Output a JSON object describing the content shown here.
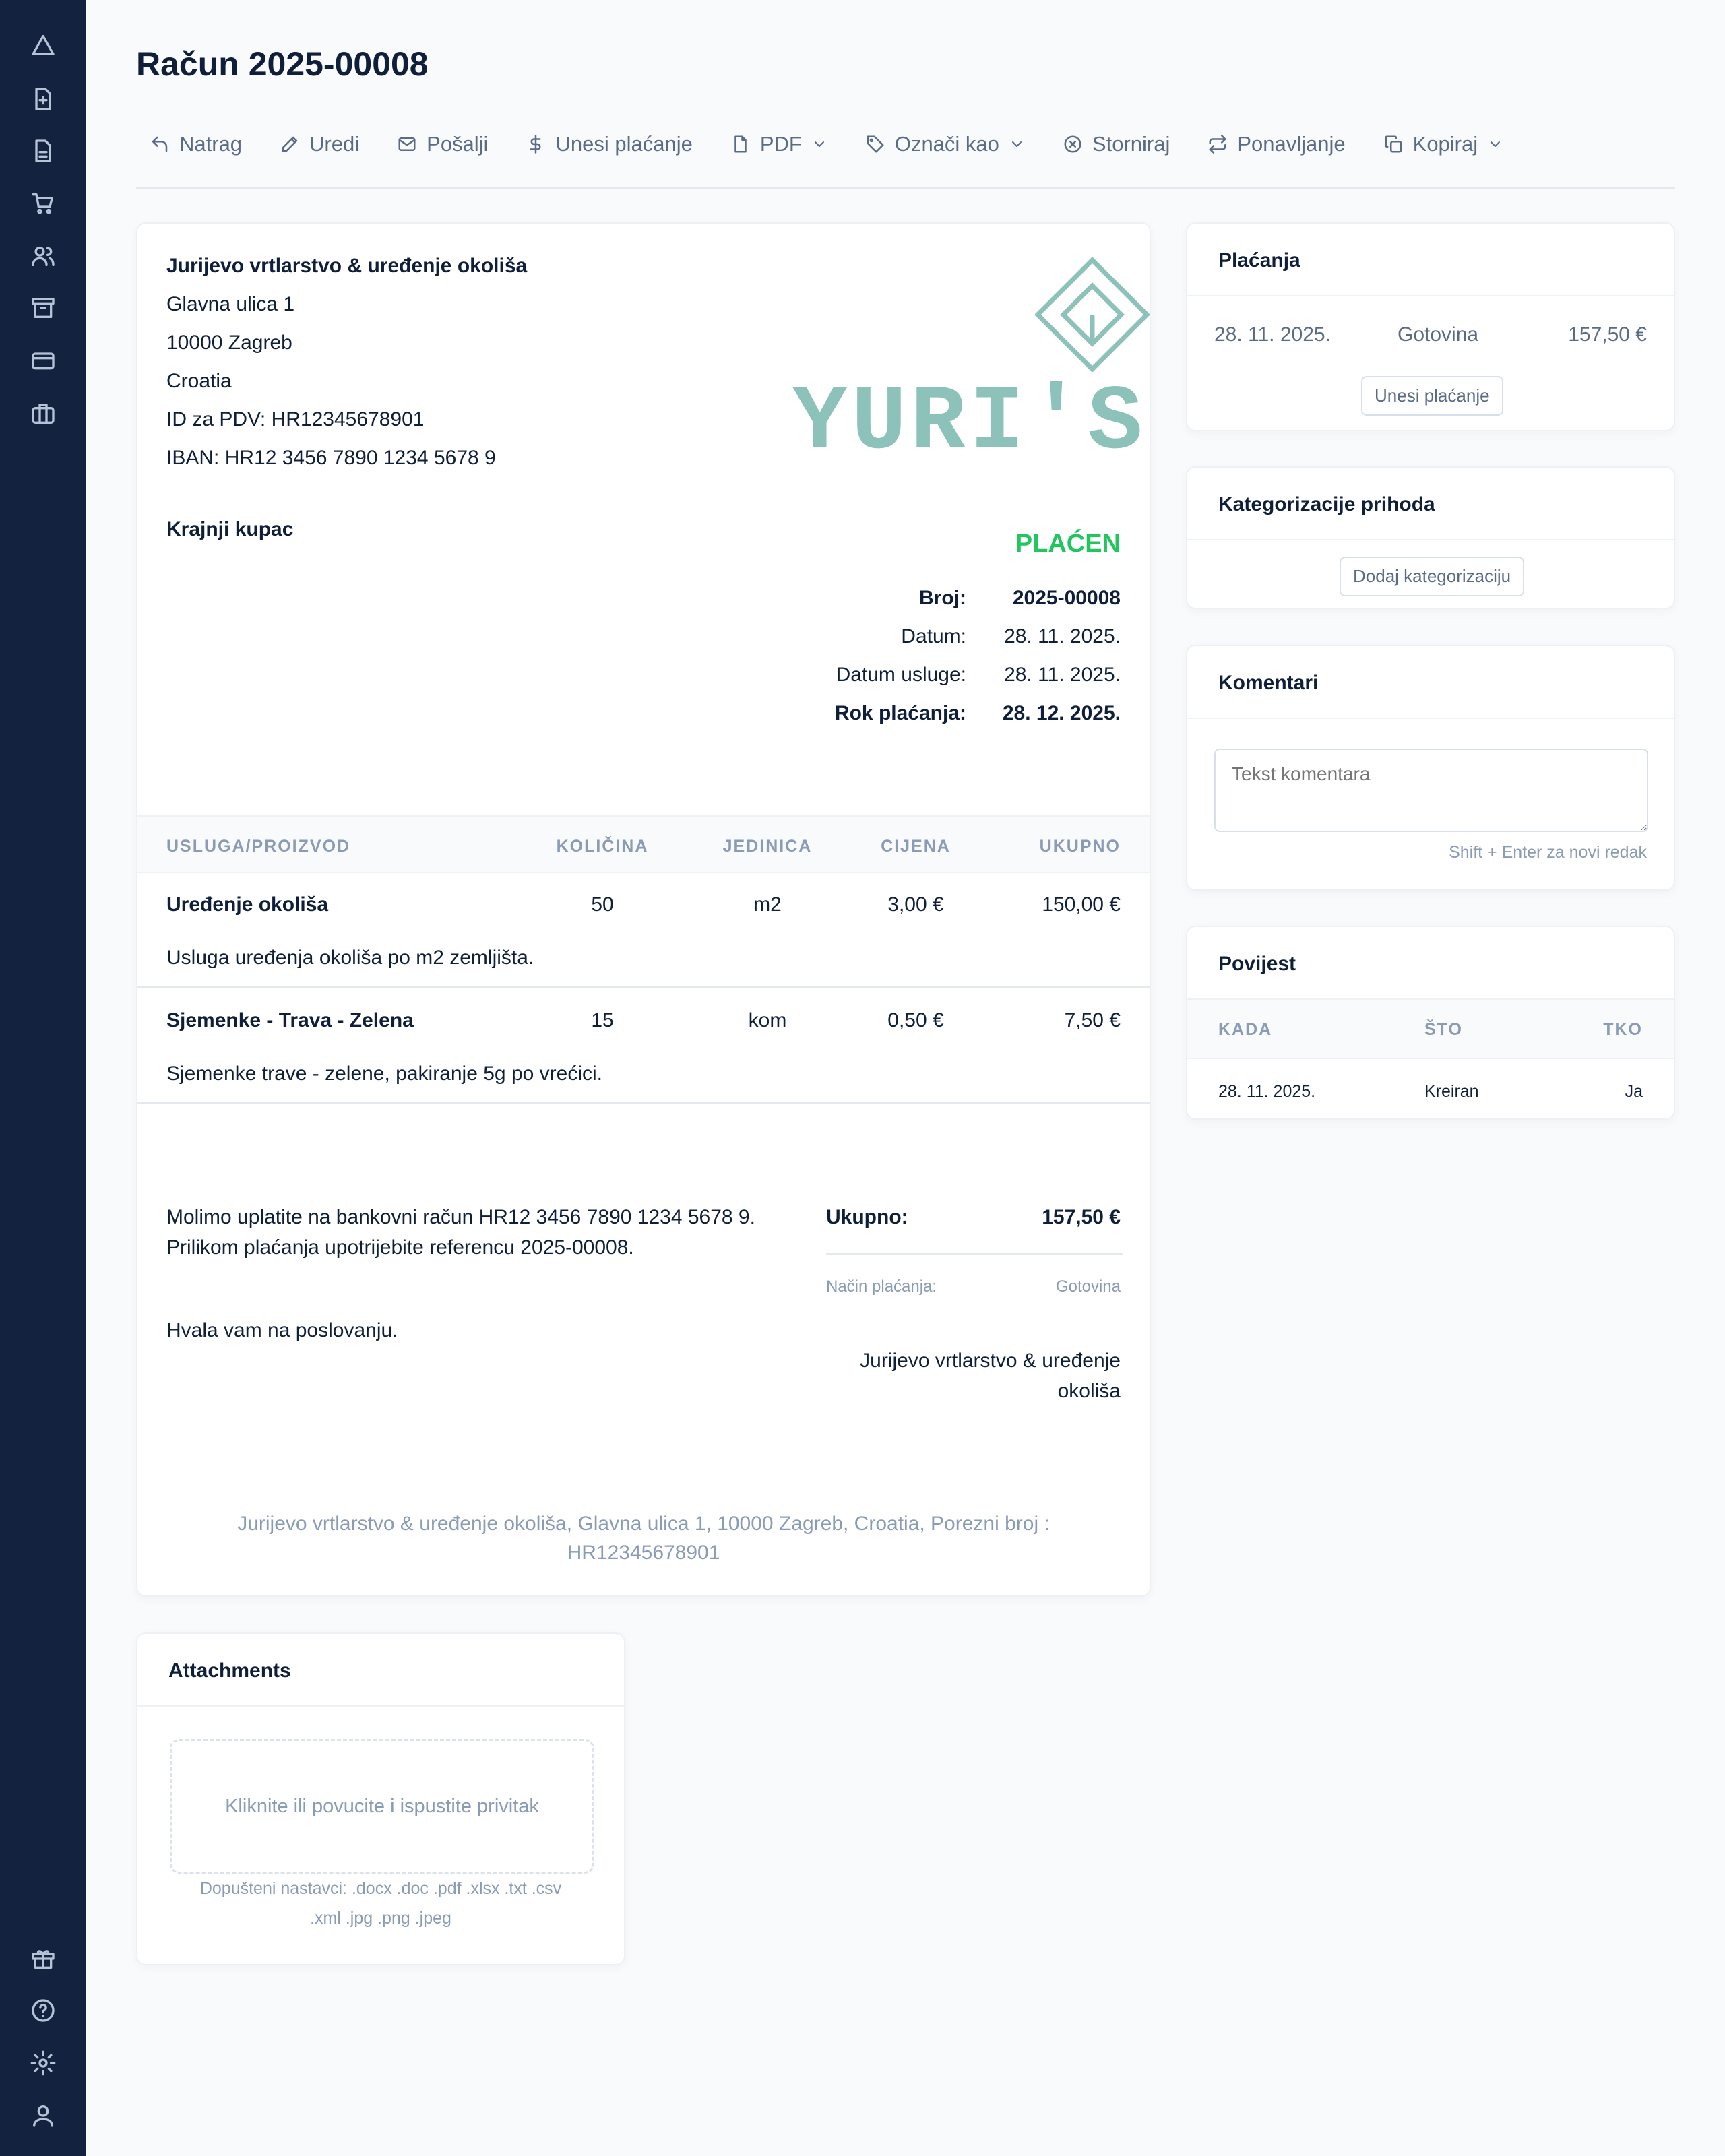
{
  "sidebar": {
    "top_icons": [
      "home-triangle-icon",
      "file-plus-icon",
      "file-text-icon",
      "cart-icon",
      "users-icon",
      "archive-icon",
      "credit-card-icon",
      "briefcase-icon"
    ],
    "bottom_icons": [
      "gift-icon",
      "help-icon",
      "settings-icon",
      "user-icon"
    ]
  },
  "page": {
    "title": "Račun 2025-00008"
  },
  "toolbar": [
    {
      "label": "Natrag",
      "icon": "back-arrow-icon"
    },
    {
      "label": "Uredi",
      "icon": "edit-icon"
    },
    {
      "label": "Pošalji",
      "icon": "mail-icon"
    },
    {
      "label": "Unesi plaćanje",
      "icon": "dollar-icon"
    },
    {
      "label": "PDF",
      "icon": "file-icon",
      "dropdown": true
    },
    {
      "label": "Označi kao",
      "icon": "tag-icon",
      "dropdown": true
    },
    {
      "label": "Storniraj",
      "icon": "x-circle-icon"
    },
    {
      "label": "Ponavljanje",
      "icon": "repeat-icon"
    },
    {
      "label": "Kopiraj",
      "icon": "copy-icon",
      "dropdown": true
    }
  ],
  "invoice": {
    "company": {
      "name": "Jurijevo vrtlarstvo & uređenje okoliša",
      "lines": [
        "Glavna ulica 1",
        "10000 Zagreb",
        "Croatia",
        "ID za PDV: HR12345678901",
        "IBAN: HR12 3456 7890 1234 5678 9"
      ]
    },
    "logo_text": "YURI'S",
    "logo_color": "#8cc2b9",
    "customer": "Krajnji kupac",
    "status": "PLAĆEN",
    "status_color": "#22c55e",
    "meta": [
      {
        "label": "Broj:",
        "value": "2025-00008",
        "bold": true
      },
      {
        "label": "Datum:",
        "value": "28. 11. 2025."
      },
      {
        "label": "Datum usluge:",
        "value": "28. 11. 2025."
      },
      {
        "label": "Rok plaćanja:",
        "value": "28. 12. 2025.",
        "bold": true
      }
    ],
    "columns": [
      "USLUGA/PROIZVOD",
      "KOLIČINA",
      "JEDINICA",
      "CIJENA",
      "UKUPNO"
    ],
    "items": [
      {
        "name": "Uređenje okoliša",
        "qty": "50",
        "unit": "m2",
        "price": "3,00 €",
        "total": "150,00 €",
        "desc": "Usluga uređenja okoliša po m2 zemljišta."
      },
      {
        "name": "Sjemenke - Trava - Zelena",
        "qty": "15",
        "unit": "kom",
        "price": "0,50 €",
        "total": "7,50 €",
        "desc": "Sjemenke trave - zelene, pakiranje 5g po vrećici."
      }
    ],
    "note_lines": [
      "Molimo uplatite na bankovni račun HR12 3456 7890 1234 5678 9.",
      "Prilikom plaćanja upotrijebite referencu 2025-00008."
    ],
    "thanks": "Hvala vam na poslovanju.",
    "total_label": "Ukupno:",
    "total_value": "157,50 €",
    "payment_method_label": "Način plaćanja:",
    "payment_method_value": "Gotovina",
    "signature_lines": [
      "Jurijevo vrtlarstvo & uređenje",
      "okoliša"
    ],
    "footer_lines": [
      "Jurijevo vrtlarstvo & uređenje okoliša, Glavna ulica 1, 10000 Zagreb, Croatia, Porezni broj :",
      "HR12345678901"
    ]
  },
  "payments": {
    "title": "Plaćanja",
    "row": {
      "date": "28. 11. 2025.",
      "method": "Gotovina",
      "amount": "157,50 €"
    },
    "button": "Unesi plaćanje"
  },
  "categorization": {
    "title": "Kategorizacije prihoda",
    "button": "Dodaj kategorizaciju"
  },
  "comments": {
    "title": "Komentari",
    "placeholder": "Tekst komentara",
    "hint": "Shift + Enter za novi redak"
  },
  "history": {
    "title": "Povijest",
    "columns": [
      "KADA",
      "ŠTO",
      "TKO"
    ],
    "rows": [
      {
        "when": "28. 11. 2025.",
        "what": "Kreiran",
        "who": "Ja"
      }
    ]
  },
  "attachments": {
    "title": "Attachments",
    "dropzone": "Kliknite ili povucite i ispustite privitak",
    "allowed_lines": [
      "Dopušteni nastavci: .docx .doc .pdf .xlsx .txt .csv",
      ".xml .jpg .png .jpeg"
    ]
  }
}
